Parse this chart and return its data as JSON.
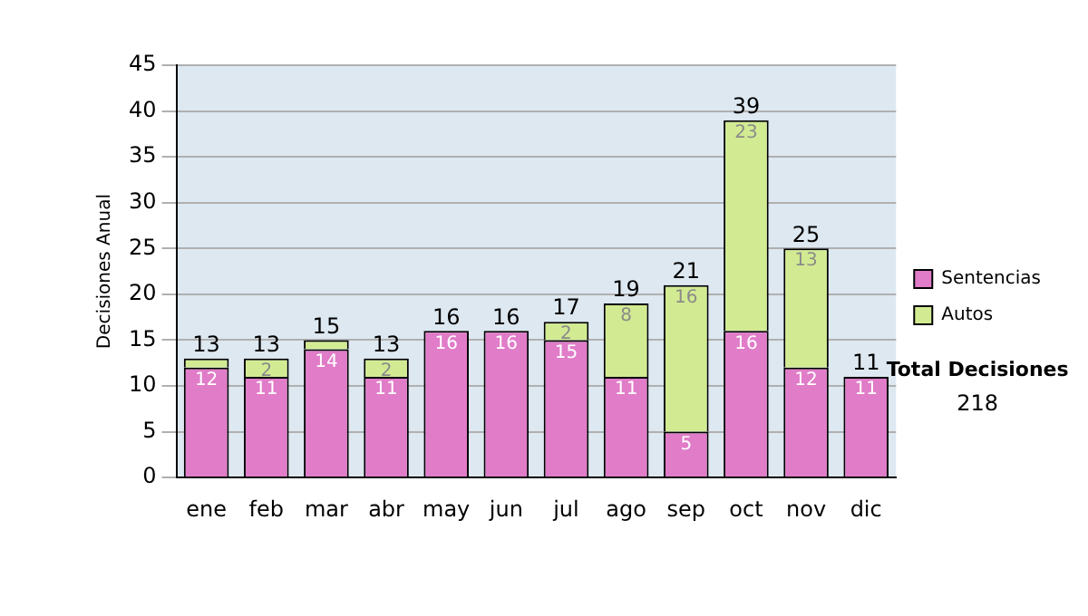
{
  "chart_data": {
    "type": "bar",
    "stacked": true,
    "ylabel": "Decisiones Anual",
    "categories": [
      "ene",
      "feb",
      "mar",
      "abr",
      "may",
      "jun",
      "jul",
      "ago",
      "sep",
      "oct",
      "nov",
      "dic"
    ],
    "series": [
      {
        "name": "Sentencias",
        "color": "#e07cc8",
        "values": [
          12,
          11,
          14,
          11,
          16,
          16,
          15,
          11,
          5,
          16,
          12,
          11
        ],
        "value_labels": [
          "12",
          "11",
          "14",
          "11",
          "16",
          "16",
          "15",
          "11",
          "5",
          "16",
          "12",
          "11"
        ]
      },
      {
        "name": "Autos",
        "color": "#d2eb92",
        "values": [
          1,
          2,
          1,
          2,
          0,
          0,
          2,
          8,
          16,
          23,
          13,
          0
        ],
        "value_labels": [
          null,
          "2",
          null,
          "2",
          null,
          null,
          "2",
          "8",
          "16",
          "23",
          "13",
          null
        ]
      }
    ],
    "totals": [
      "13",
      "13",
      "15",
      "13",
      "16",
      "16",
      "17",
      "19",
      "21",
      "39",
      "25",
      "11"
    ],
    "ylim": [
      0,
      45
    ],
    "yticks": [
      0,
      5,
      10,
      15,
      20,
      25,
      30,
      35,
      40,
      45
    ],
    "grid": "y",
    "legend": "right",
    "annotations": [
      "Total Decisiones",
      "218"
    ]
  }
}
